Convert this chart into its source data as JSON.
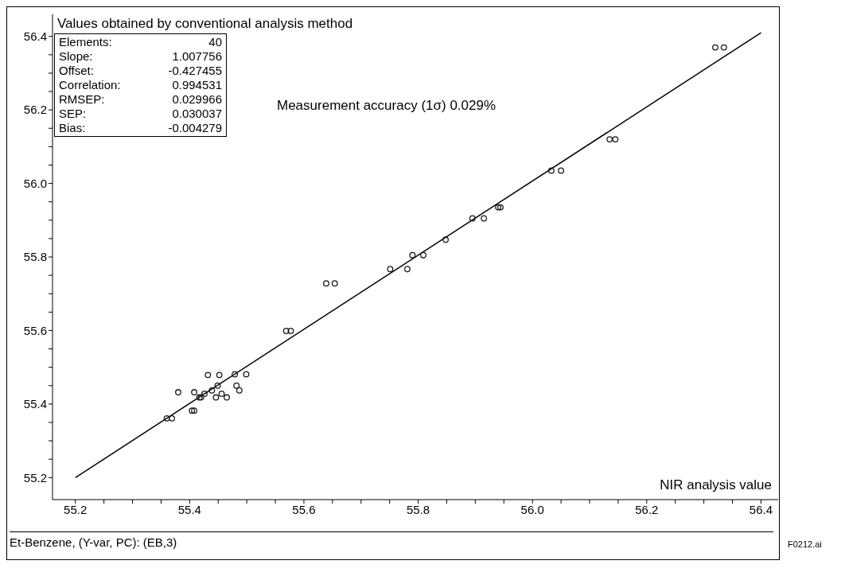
{
  "chart_data": {
    "type": "scatter",
    "ylabel": "Values obtained by conventional analysis method",
    "xlabel": "NIR analysis value",
    "annotations": [
      "Elements: 40",
      "Slope: 1.007756",
      "Offset: -0.427455",
      "Correlation: 0.994531",
      "RMSEP: 0.029966",
      "SEP: 0.030037",
      "Bias: -0.004279",
      "Measurement accuracy (1σ) 0.029%",
      "Et-Benzene, (Y-var, PC): (EB,3)",
      "F0212.ai"
    ],
    "xlim": [
      55.16,
      56.43
    ],
    "ylim": [
      55.14,
      56.46
    ],
    "xticks": [
      {
        "value": 55.2,
        "label": "55.2"
      },
      {
        "value": 55.25,
        "label": null
      },
      {
        "value": 55.3,
        "label": null
      },
      {
        "value": 55.35,
        "label": null
      },
      {
        "value": 55.4,
        "label": "55.4"
      },
      {
        "value": 55.45,
        "label": null
      },
      {
        "value": 55.5,
        "label": null
      },
      {
        "value": 55.55,
        "label": null
      },
      {
        "value": 55.6,
        "label": "55.6"
      },
      {
        "value": 55.65,
        "label": null
      },
      {
        "value": 55.7,
        "label": null
      },
      {
        "value": 55.75,
        "label": null
      },
      {
        "value": 55.8,
        "label": "55.8"
      },
      {
        "value": 55.85,
        "label": null
      },
      {
        "value": 55.9,
        "label": null
      },
      {
        "value": 55.95,
        "label": null
      },
      {
        "value": 56,
        "label": "56.0"
      },
      {
        "value": 56.05,
        "label": null
      },
      {
        "value": 56.1,
        "label": null
      },
      {
        "value": 56.15,
        "label": null
      },
      {
        "value": 56.2,
        "label": "56.2"
      },
      {
        "value": 56.25,
        "label": null
      },
      {
        "value": 56.3,
        "label": null
      },
      {
        "value": 56.35,
        "label": null
      },
      {
        "value": 56.4,
        "label": "56.4"
      }
    ],
    "yticks": [
      {
        "value": 55.2,
        "label": "55.2"
      },
      {
        "value": 55.25,
        "label": null
      },
      {
        "value": 55.3,
        "label": null
      },
      {
        "value": 55.35,
        "label": null
      },
      {
        "value": 55.4,
        "label": "55.4"
      },
      {
        "value": 55.45,
        "label": null
      },
      {
        "value": 55.5,
        "label": null
      },
      {
        "value": 55.55,
        "label": null
      },
      {
        "value": 55.6,
        "label": "55.6"
      },
      {
        "value": 55.65,
        "label": null
      },
      {
        "value": 55.7,
        "label": null
      },
      {
        "value": 55.75,
        "label": null
      },
      {
        "value": 55.8,
        "label": "55.8"
      },
      {
        "value": 55.85,
        "label": null
      },
      {
        "value": 55.9,
        "label": null
      },
      {
        "value": 55.95,
        "label": null
      },
      {
        "value": 56,
        "label": "56.0"
      },
      {
        "value": 56.05,
        "label": null
      },
      {
        "value": 56.1,
        "label": null
      },
      {
        "value": 56.15,
        "label": null
      },
      {
        "value": 56.2,
        "label": "56.2"
      },
      {
        "value": 56.25,
        "label": null
      },
      {
        "value": 56.3,
        "label": null
      },
      {
        "value": 56.35,
        "label": null
      },
      {
        "value": 56.4,
        "label": "56.4"
      }
    ],
    "marker": "circle",
    "series": [
      {
        "color": "#1a1a1a",
        "x": [
          55.36,
          55.369,
          55.404,
          55.408,
          55.38,
          55.408,
          55.417,
          55.42,
          55.426,
          55.439,
          55.446,
          55.456,
          55.465,
          55.449,
          55.482,
          55.487,
          55.432,
          55.452,
          55.479,
          55.499,
          55.569,
          55.577,
          55.639,
          55.654,
          55.751,
          55.781,
          55.79,
          55.809,
          55.848,
          55.895,
          55.915,
          55.94,
          55.944,
          56.033,
          56.05,
          56.135,
          56.145,
          56.32,
          56.335
        ],
        "values": [
          55.361,
          55.361,
          55.382,
          55.382,
          55.432,
          55.432,
          55.418,
          55.418,
          55.428,
          55.437,
          55.418,
          55.428,
          55.418,
          55.45,
          55.45,
          55.437,
          55.479,
          55.479,
          55.481,
          55.481,
          55.599,
          55.599,
          55.728,
          55.728,
          55.767,
          55.767,
          55.805,
          55.805,
          55.847,
          55.905,
          55.905,
          55.935,
          55.935,
          56.035,
          56.035,
          56.12,
          56.12,
          56.37,
          56.37
        ]
      },
      {
        "type": "line",
        "marker": "none",
        "color": "#000000",
        "x": [
          55.2,
          56.4
        ],
        "values": [
          55.2,
          56.41
        ]
      }
    ]
  }
}
